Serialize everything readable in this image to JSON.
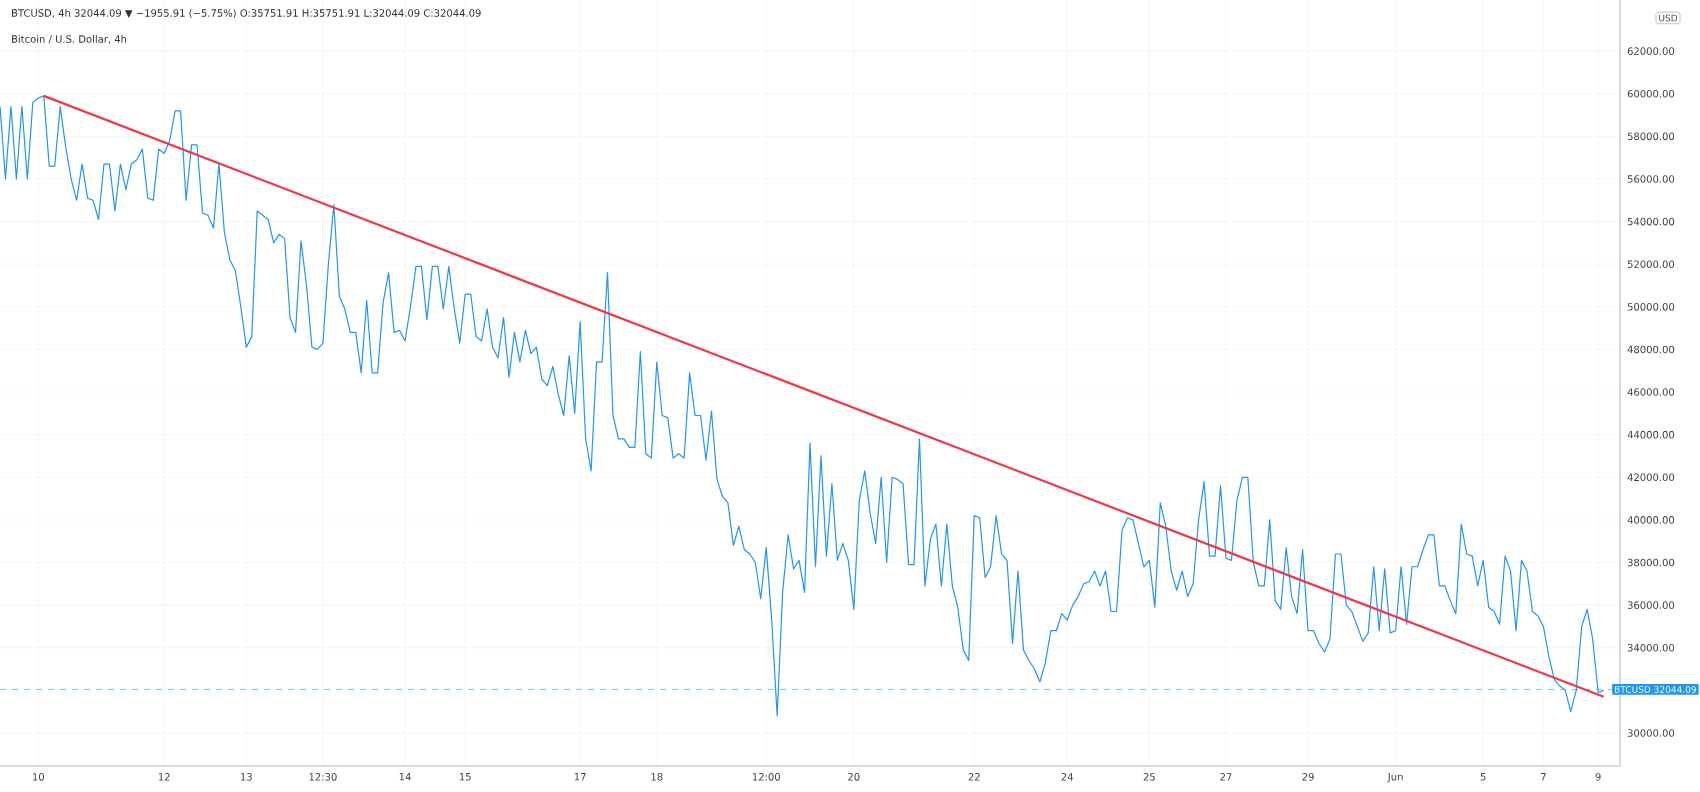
{
  "chart_data": {
    "type": "line",
    "title": "Bitcoin / U.S. Dollar, 4h",
    "subtitle": "BTCUSD, 4h 32044.09 ▼ −1955.91 (−5.75%) O:35751.91 H:35751.91 L:32044.09 C:32044.09",
    "ylabel": "USD",
    "series": [
      {
        "color": "#2196f3",
        "values": [
          59400,
          56000,
          59400,
          56000,
          59400,
          56000,
          59600,
          59800,
          59900,
          56600,
          56600,
          59400,
          57500,
          56000,
          55000,
          56700,
          55100,
          55000,
          54100,
          56700,
          56700,
          54500,
          56700,
          55500,
          56700,
          56900,
          57400,
          55100,
          55000,
          57400,
          57200,
          57800,
          59200,
          59200,
          55000,
          57600,
          57600,
          54400,
          54300,
          53700,
          56700,
          53500,
          52200,
          51700,
          50000,
          48100,
          48600,
          54500,
          54300,
          54100,
          53000,
          53400,
          53200,
          49500,
          48800,
          53100,
          51000,
          48100,
          48000,
          48300,
          52000,
          54800,
          50500,
          49900,
          48800,
          48800,
          46900,
          50300,
          46900,
          46900,
          50200,
          51600,
          48800,
          48900,
          48400,
          50000,
          51900,
          51900,
          49400,
          51900,
          51900,
          49900,
          51900,
          49900,
          48300,
          50600,
          50600,
          48600,
          48400,
          49900,
          48100,
          47600,
          49500,
          46700,
          48800,
          47400,
          48900,
          47800,
          48100,
          46600,
          46300,
          47200,
          45900,
          44900,
          47700,
          45000,
          49300,
          43800,
          42300,
          47400,
          47400,
          51600,
          44900,
          43800,
          43800,
          43400,
          43400,
          47900,
          43100,
          42900,
          47400,
          44900,
          44800,
          42900,
          43100,
          42900,
          46900,
          44900,
          44900,
          42800,
          45100,
          41900,
          41100,
          40800,
          38800,
          39700,
          38600,
          38400,
          38000,
          36300,
          38700,
          35300,
          30800,
          36600,
          39300,
          37700,
          38100,
          36600,
          43600,
          37800,
          43000,
          38300,
          41700,
          38100,
          38900,
          38100,
          35800,
          40900,
          42300,
          40300,
          38900,
          42000,
          38000,
          42000,
          41900,
          41700,
          37900,
          37900,
          43800,
          36900,
          39100,
          39800,
          36900,
          39800,
          36900,
          35900,
          33900,
          33400,
          40200,
          40100,
          37300,
          37800,
          40200,
          38400,
          38100,
          34200,
          37600,
          33900,
          33400,
          33000,
          32400,
          33300,
          34800,
          34800,
          35600,
          35300,
          36000,
          36400,
          37000,
          37100,
          37600,
          36900,
          37600,
          35700,
          35700,
          39500,
          40100,
          40000,
          38900,
          37800,
          38100,
          35900,
          40800,
          39700,
          37600,
          36700,
          37600,
          36400,
          37000,
          40000,
          41800,
          38300,
          38300,
          41600,
          38200,
          38100,
          40900,
          42000,
          42000,
          38000,
          36900,
          36900,
          40000,
          36200,
          35800,
          38700,
          36400,
          35600,
          38600,
          34800,
          34800,
          34200,
          33800,
          34400,
          38400,
          38400,
          36000,
          35700,
          35000,
          34300,
          34700,
          37800,
          34800,
          37700,
          34700,
          34800,
          37800,
          35100,
          37800,
          37800,
          38600,
          39300,
          39300,
          36900,
          36900,
          36200,
          35600,
          39800,
          38400,
          38300,
          36900,
          38100,
          35900,
          35700,
          35100,
          38300,
          37600,
          34800,
          38100,
          37600,
          35700,
          35500,
          35000,
          33600,
          32500,
          32200,
          32000,
          31000,
          32000,
          35000,
          35800,
          34400,
          31900,
          32000
        ]
      },
      {
        "color": "#f23645",
        "values": [
          null,
          null,
          null,
          null,
          null,
          null,
          null,
          null,
          59900,
          null,
          null,
          null,
          null,
          null,
          null,
          null,
          null,
          null,
          null,
          null,
          null,
          null,
          null,
          null,
          null,
          null,
          null,
          null,
          null,
          null,
          null,
          null,
          null,
          null,
          null,
          null,
          null,
          null,
          null,
          null,
          null,
          null,
          null,
          null,
          null,
          null,
          null,
          null,
          null,
          null,
          null,
          null,
          null,
          null,
          null,
          null,
          null,
          null,
          null,
          null,
          null,
          null,
          null,
          null,
          null,
          null,
          null,
          null,
          null,
          null,
          null,
          null,
          null,
          null,
          null,
          null,
          null,
          null,
          null,
          null,
          null,
          null,
          null,
          null,
          null,
          null,
          null,
          null,
          null,
          null,
          null,
          null,
          null,
          null,
          null,
          null,
          null,
          null,
          null,
          null,
          null,
          null,
          null,
          null,
          null,
          null,
          null,
          null,
          null,
          null,
          null,
          null,
          null,
          null,
          null,
          null,
          null,
          null,
          null,
          null,
          null,
          null,
          null,
          null,
          null,
          null,
          null,
          null,
          null,
          null,
          null,
          null,
          null,
          null,
          null,
          null,
          null,
          null,
          null,
          null,
          null,
          null,
          null,
          null,
          null,
          null,
          null,
          null,
          null,
          null,
          null,
          null,
          null,
          null,
          null,
          null,
          null,
          null,
          null,
          null,
          null,
          null,
          null,
          null,
          null,
          null,
          null,
          null,
          null,
          null,
          null,
          null,
          null,
          null,
          null,
          null,
          null,
          null,
          null,
          null,
          null,
          null,
          null,
          null,
          null,
          null,
          null,
          null,
          null,
          null,
          null,
          null,
          null,
          null,
          null,
          null,
          null,
          null,
          null,
          null,
          null,
          null,
          null,
          null,
          null,
          null,
          null,
          null,
          null,
          null,
          null,
          null,
          null,
          null,
          null,
          null,
          null,
          null,
          null,
          null,
          null,
          null,
          null,
          null,
          null,
          null,
          null,
          null,
          null,
          null,
          null,
          null,
          null,
          null,
          null,
          null,
          null,
          null,
          null,
          null,
          null,
          null,
          null,
          null,
          null,
          null,
          null,
          null,
          null,
          null,
          null,
          null,
          null,
          null,
          null,
          null,
          null,
          null,
          null,
          null,
          null,
          null,
          null,
          null,
          null,
          null,
          null,
          null,
          null,
          null,
          null,
          null,
          null,
          null,
          null,
          null,
          null,
          null,
          null,
          null,
          null,
          null,
          null,
          null,
          null,
          null,
          null,
          null,
          null,
          null,
          null,
          null,
          null,
          31700
        ]
      }
    ],
    "categories": [
      null,
      null,
      null,
      null,
      null,
      null,
      null,
      "10",
      null,
      null,
      null,
      null,
      null,
      null,
      null,
      null,
      null,
      null,
      null,
      null,
      null,
      null,
      null,
      null,
      null,
      null,
      null,
      null,
      null,
      null,
      "12",
      null,
      null,
      null,
      null,
      null,
      null,
      null,
      null,
      null,
      null,
      null,
      null,
      null,
      null,
      "13",
      null,
      null,
      null,
      null,
      null,
      null,
      null,
      null,
      null,
      null,
      null,
      null,
      null,
      "12:30",
      null,
      null,
      null,
      null,
      null,
      null,
      null,
      null,
      null,
      null,
      null,
      null,
      null,
      null,
      "14",
      null,
      null,
      null,
      null,
      null,
      null,
      null,
      null,
      null,
      null,
      "15",
      null,
      null,
      null,
      null,
      null,
      null,
      null,
      null,
      null,
      null,
      null,
      null,
      null,
      null,
      null,
      null,
      null,
      null,
      null,
      null,
      "17",
      null,
      null,
      null,
      null,
      null,
      null,
      null,
      null,
      null,
      null,
      null,
      null,
      null,
      "18",
      null,
      null,
      null,
      null,
      null,
      null,
      null,
      null,
      null,
      null,
      null,
      null,
      null,
      null,
      null,
      null,
      null,
      null,
      null,
      "12:00",
      null,
      null,
      null,
      null,
      null,
      null,
      null,
      null,
      null,
      null,
      null,
      null,
      null,
      null,
      null,
      "20",
      null,
      null,
      null,
      null,
      null,
      null,
      null,
      null,
      null,
      null,
      null,
      null,
      null,
      null,
      null,
      null,
      null,
      null,
      null,
      null,
      null,
      "22",
      null,
      null,
      null,
      null,
      null,
      null,
      null,
      null,
      null,
      null,
      null,
      null,
      null,
      null,
      null,
      null,
      "24",
      null,
      null,
      null,
      null,
      null,
      null,
      null,
      null,
      null,
      null,
      null,
      null,
      null,
      null,
      "25",
      null,
      null,
      null,
      null,
      null,
      null,
      null,
      null,
      null,
      null,
      null,
      null,
      null,
      "27",
      null,
      null,
      null,
      null,
      null,
      null,
      null,
      null,
      null,
      null,
      null,
      null,
      null,
      null,
      "29",
      null,
      null,
      null,
      null,
      null,
      null,
      null,
      null,
      null,
      null,
      null,
      null,
      null,
      null,
      null,
      "Jun",
      null,
      null,
      null,
      null,
      null,
      null,
      null,
      null,
      null,
      null,
      null,
      null,
      null,
      null,
      null,
      "5",
      null,
      null,
      null,
      null,
      null,
      null,
      null,
      null,
      null,
      null,
      "7",
      null,
      null,
      null,
      null,
      null,
      null,
      null,
      null,
      null,
      "9",
      null
    ],
    "ylim": [
      28450,
      64400
    ],
    "yticks": [
      {
        "value": 30000,
        "label": "30000.00"
      },
      {
        "value": 34000,
        "label": "34000.00"
      },
      {
        "value": 36000,
        "label": "36000.00"
      },
      {
        "value": 38000,
        "label": "38000.00"
      },
      {
        "value": 40000,
        "label": "40000.00"
      },
      {
        "value": 42000,
        "label": "42000.00"
      },
      {
        "value": 44000,
        "label": "44000.00"
      },
      {
        "value": 46000,
        "label": "46000.00"
      },
      {
        "value": 48000,
        "label": "48000.00"
      },
      {
        "value": 50000,
        "label": "50000.00"
      },
      {
        "value": 52000,
        "label": "52000.00"
      },
      {
        "value": 54000,
        "label": "54000.00"
      },
      {
        "value": 56000,
        "label": "56000.00"
      },
      {
        "value": 58000,
        "label": "58000.00"
      },
      {
        "value": 60000,
        "label": "60000.00"
      },
      {
        "value": 62000,
        "label": "62000.00"
      }
    ],
    "ref_lines": [
      {
        "axis": "y",
        "value": 32044.09,
        "label": "BTCUSD  32044.09",
        "color": "#2196f3",
        "line_style": "dashed"
      }
    ],
    "grid": true,
    "marker": "none"
  }
}
